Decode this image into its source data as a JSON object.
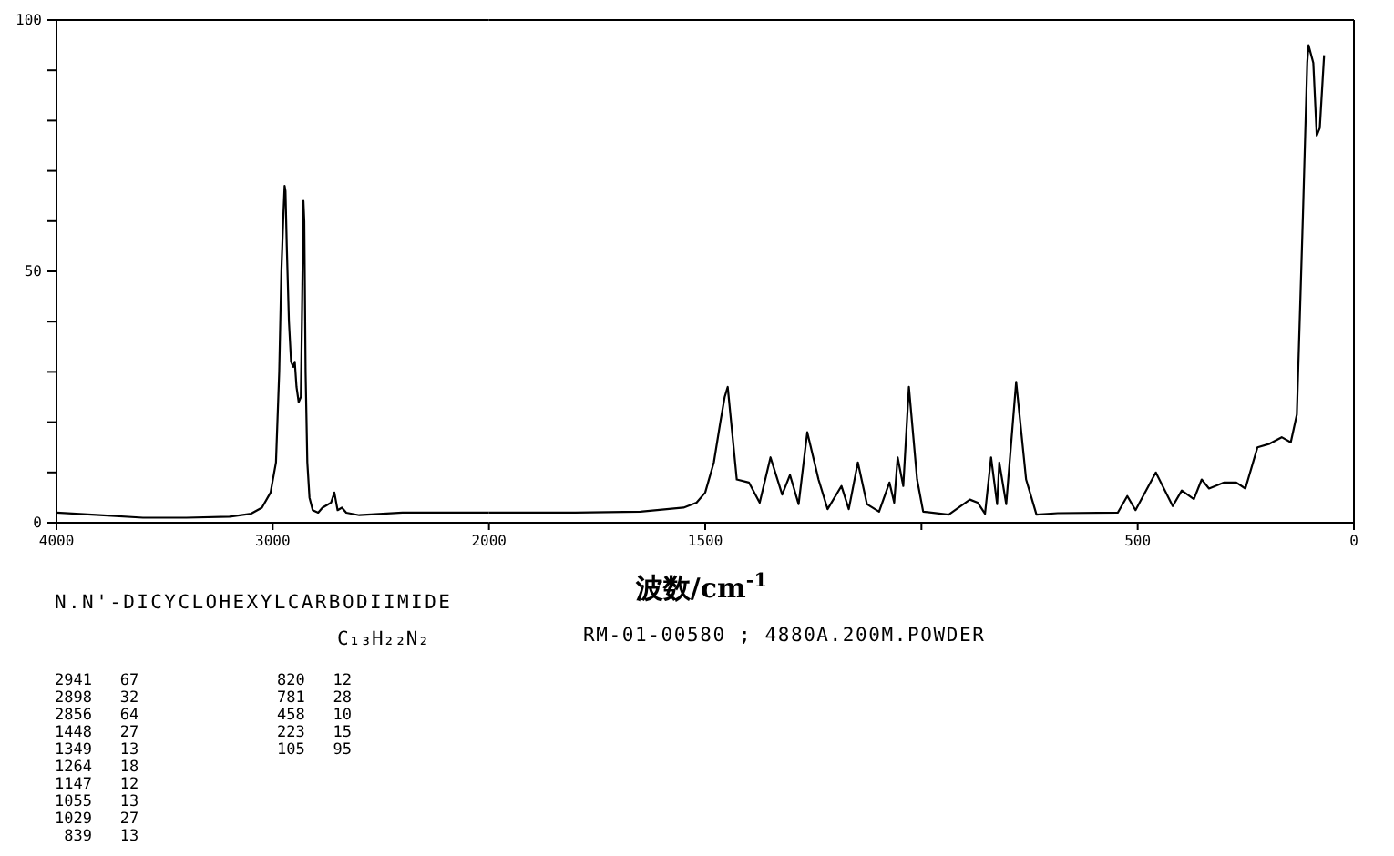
{
  "chart_data": [
    {
      "type": "line",
      "title": "N.N'-DICYCLOHEXYLCARBODIIMIDE",
      "subtitle": "C₁₃H₂₂N₂",
      "annotations": [
        "RM-01-00580 ; 4880A.200M.POWDER",
        "2941   67",
        "2898   32",
        "2856   64",
        "1448   27",
        "1349   13",
        "1264   18",
        "1147   12",
        "1055   13",
        "1029   27",
        " 839   13",
        "820   12",
        "781   28",
        "458   10",
        "223   15",
        "105   95"
      ],
      "xlim": [
        4000,
        2000
      ],
      "ylim": [
        0,
        100
      ],
      "xticks": [
        4000,
        3000,
        2000
      ],
      "yticks": [
        0,
        {
          "value": 10,
          "label": null
        },
        {
          "value": 20,
          "label": null
        },
        {
          "value": 30,
          "label": null
        },
        {
          "value": 40,
          "label": null
        },
        50,
        {
          "value": 60,
          "label": null
        },
        {
          "value": 70,
          "label": null
        },
        {
          "value": 80,
          "label": null
        },
        {
          "value": 90,
          "label": null
        },
        100
      ],
      "grid": false,
      "marker": "none",
      "line_style": "solid",
      "series": [
        {
          "color": "#000000",
          "x": [
            4000,
            3800,
            3600,
            3400,
            3200,
            3100,
            3050,
            3010,
            2985,
            2970,
            2960,
            2950,
            2945,
            2941,
            2935,
            2925,
            2915,
            2905,
            2898,
            2890,
            2880,
            2870,
            2865,
            2858,
            2854,
            2848,
            2840,
            2830,
            2815,
            2790,
            2770,
            2750,
            2730,
            2715,
            2700,
            2680,
            2660,
            2600,
            2400,
            2200,
            2000
          ],
          "values": [
            2,
            1.5,
            1,
            1,
            1.2,
            1.8,
            3,
            6,
            12,
            30,
            50,
            62,
            67,
            66,
            55,
            40,
            32,
            31,
            32,
            27,
            24,
            25,
            40,
            64,
            60,
            30,
            12,
            5,
            2.5,
            2,
            3,
            3.5,
            4,
            6,
            2.5,
            3,
            2,
            1.5,
            2,
            2,
            2
          ]
        }
      ]
    },
    {
      "type": "line",
      "xlabel": "波数/cm$^{-1}$",
      "xlim": [
        2000,
        0
      ],
      "ylim": [
        0,
        100
      ],
      "tick_labels": "x",
      "xticks": [
        1500,
        {
          "value": 1000,
          "label": null
        },
        500,
        0
      ],
      "grid": false,
      "marker": "none",
      "line_style": "solid",
      "series": [
        {
          "color": "#000000",
          "x": [
            2000,
            1800,
            1650,
            1550,
            1520,
            1500,
            1480,
            1465,
            1455,
            1448,
            1440,
            1427,
            1399,
            1374,
            1349,
            1322,
            1304,
            1284,
            1264,
            1238,
            1217,
            1185,
            1168,
            1147,
            1126,
            1098,
            1074,
            1063,
            1055,
            1042,
            1029,
            1010,
            996,
            937,
            888,
            870,
            853,
            839,
            825,
            820,
            804,
            781,
            758,
            734,
            685,
            546,
            524,
            505,
            458,
            419,
            398,
            370,
            352,
            335,
            300,
            272,
            251,
            223,
            195,
            167,
            146,
            132,
            118,
            108,
            105,
            94,
            86,
            79,
            69
          ],
          "values": [
            2,
            2,
            2.2,
            3,
            4,
            6,
            12,
            20,
            25,
            27,
            20,
            8.6,
            8,
            4,
            13,
            5.6,
            9.5,
            3.7,
            18,
            8.6,
            2.7,
            7.3,
            2.7,
            12,
            3.7,
            2.2,
            8,
            4,
            13,
            7.3,
            27,
            8.6,
            2.2,
            1.6,
            4.6,
            4,
            1.8,
            13,
            3.7,
            12,
            3.7,
            28,
            8.6,
            1.6,
            1.9,
            2,
            5.3,
            2.5,
            10,
            3.3,
            6.4,
            4.7,
            8.6,
            6.8,
            8,
            8,
            6.8,
            15,
            15.7,
            17,
            16,
            21.5,
            61,
            91.5,
            95,
            91.5,
            77,
            78.5,
            93
          ]
        }
      ]
    }
  ]
}
